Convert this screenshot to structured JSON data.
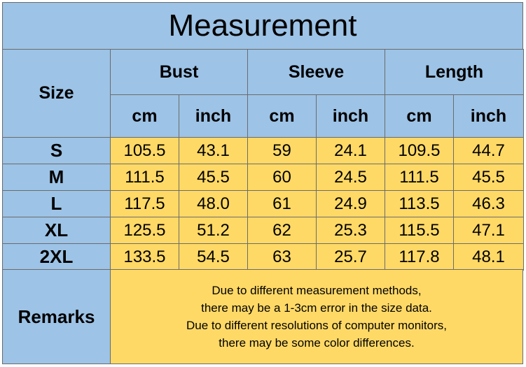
{
  "title": "Measurement",
  "table": {
    "header": {
      "size": "Size",
      "groups": [
        "Bust",
        "Sleeve",
        "Length"
      ],
      "units": [
        "cm",
        "inch",
        "cm",
        "inch",
        "cm",
        "inch"
      ]
    },
    "rows": [
      [
        "S",
        "105.5",
        "43.1",
        "59",
        "24.1",
        "109.5",
        "44.7"
      ],
      [
        "M",
        "111.5",
        "45.5",
        "60",
        "24.5",
        "111.5",
        "45.5"
      ],
      [
        "L",
        "117.5",
        "48.0",
        "61",
        "24.9",
        "113.5",
        "46.3"
      ],
      [
        "XL",
        "125.5",
        "51.2",
        "62",
        "25.3",
        "115.5",
        "47.1"
      ],
      [
        "2XL",
        "133.5",
        "54.5",
        "63",
        "25.7",
        "117.8",
        "48.1"
      ]
    ],
    "remarks": {
      "label": "Remarks",
      "lines": [
        "Due to different measurement methods,",
        "there may be a 1-3cm error in the size data.",
        "Due to different resolutions of computer monitors,",
        "there may be some color differences."
      ]
    }
  }
}
